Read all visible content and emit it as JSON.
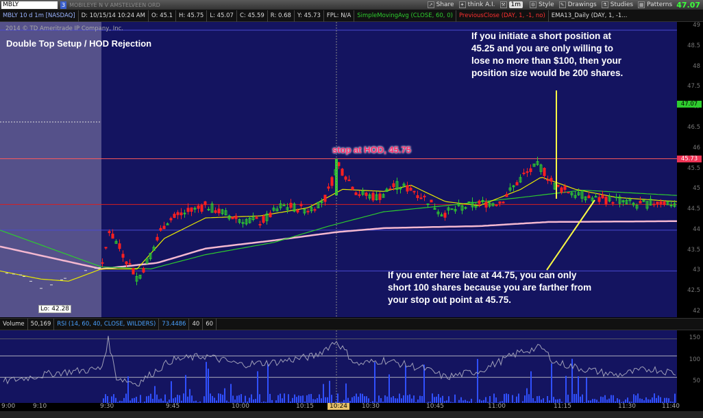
{
  "topbar": {
    "symbol": "MBLY",
    "link_chip": "3",
    "description": "MOBILEYE N V AMSTELVEEN ORD",
    "share_label": "Share",
    "think_label": "think A.I.",
    "timeframe": "1m",
    "style_label": "Style",
    "drawings_label": "Drawings",
    "studies_label": "Studies",
    "patterns_label": "Patterns",
    "last_price": "47.07"
  },
  "infobar": {
    "title": "MBLY 10 d 1m [NASDAQ]",
    "date": "D: 10/15/14 10:24 AM",
    "open": "O: 45.1",
    "high": "H: 45.75",
    "low": "L: 45.07",
    "close": "C: 45.59",
    "range": "R: 0.68",
    "y": "Y: 45.73",
    "fpl": "FPL: N/A",
    "sma": "SimpleMovingAvg (CLOSE, 60, 0)",
    "prevclose": "PreviousClose (DAY, 1, -1, no)",
    "ema": "EMA13_Daily (DAY, 1, -1..."
  },
  "copyright": "2014 © TD Ameritrade IP Company, Inc.",
  "price_axis": {
    "labels": [
      "49",
      "48.5",
      "48",
      "47.5",
      "47",
      "46.5",
      "46",
      "45.5",
      "45",
      "44.5",
      "44",
      "43.5",
      "43",
      "42.5",
      "42"
    ],
    "current_tag": "47.07",
    "level_tag": "45.73"
  },
  "annotations": {
    "setup_title": "Double Top Setup / HOD Rejection",
    "stop": "stop at HOD, 45.75",
    "top_right": [
      "If you initiate a short position at",
      "45.25 and you are only willing to",
      "lose no more than $100, then your",
      "position size would be 200 shares."
    ],
    "bottom_right": [
      "If you enter here late at 44.75, you can only",
      "short 100 shares because you are farther from",
      "your stop out point at 45.75."
    ],
    "low_tag": "Lo: 42.28"
  },
  "rsi_header": {
    "volume_label": "Volume",
    "volume_value": "50,169",
    "rsi_label": "RSI (14, 60, 40, CLOSE, WILDERS)",
    "rsi_value": "73.4486",
    "low_level": "40",
    "high_level": "60"
  },
  "rsi_axis": [
    "150",
    "100",
    "50"
  ],
  "time_axis": {
    "labels": [
      "9:00",
      "9:10",
      "9:30",
      "9:45",
      "10:00",
      "10:15",
      "10:30",
      "10:45",
      "11:00",
      "11:15",
      "11:30",
      "11:40"
    ],
    "cursor": "10:24"
  },
  "colors": {
    "chart_bg": "#141460",
    "premarket_bg": "#55518a",
    "sma": "#2ecc2e",
    "ema": "#e8e800",
    "slow_ma": "#f4b8d0",
    "up": "#2ecc2e",
    "down": "#ff2020",
    "annotation_line": "#ffff44",
    "stop_text": "#ff2a6a",
    "last_price": "#3cff3c"
  }
}
